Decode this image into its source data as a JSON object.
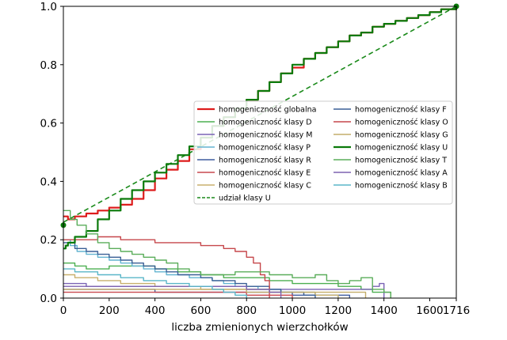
{
  "chart_data": {
    "type": "line",
    "title": "",
    "xlabel": "liczba zmienionych wierzchołków",
    "ylabel": "",
    "xlim": [
      0,
      1716
    ],
    "ylim": [
      0,
      1.0
    ],
    "xticks": [
      0,
      200,
      400,
      600,
      800,
      1000,
      1200,
      1400,
      1600,
      1716
    ],
    "yticks": [
      0.0,
      0.2,
      0.4,
      0.6,
      0.8,
      1.0
    ],
    "xtick_labels": [
      "0",
      "200",
      "400",
      "600",
      "800",
      "1000",
      "1200",
      "1400",
      "1600",
      "1716"
    ],
    "ytick_labels": [
      "0.0",
      "0.2",
      "0.4",
      "0.6",
      "0.8",
      "1.0"
    ],
    "grid": false,
    "legend_position": "center-right",
    "series": [
      {
        "name": "homogeniczność globalna",
        "color": "#dd1c1c",
        "width": 2.2,
        "dash": "",
        "x": [
          0,
          20,
          50,
          100,
          150,
          200,
          250,
          300,
          350,
          400,
          450,
          500,
          550,
          600,
          650,
          700,
          750,
          800,
          850,
          900,
          950,
          1000,
          1050,
          1100,
          1150,
          1200,
          1250,
          1300,
          1350,
          1400,
          1450,
          1500,
          1550,
          1600,
          1650,
          1716
        ],
        "y": [
          0.28,
          0.27,
          0.28,
          0.29,
          0.3,
          0.31,
          0.32,
          0.34,
          0.37,
          0.41,
          0.44,
          0.47,
          0.51,
          0.55,
          0.59,
          0.62,
          0.65,
          0.68,
          0.71,
          0.74,
          0.77,
          0.79,
          0.82,
          0.84,
          0.86,
          0.88,
          0.9,
          0.91,
          0.93,
          0.94,
          0.95,
          0.96,
          0.97,
          0.98,
          0.99,
          1.0
        ]
      },
      {
        "name": "homogeniczność klasy D",
        "color": "#4caf50",
        "width": 1.4,
        "dash": "",
        "x": [
          0,
          50,
          100,
          150,
          200,
          300,
          400,
          500,
          600,
          700,
          800,
          900,
          1000,
          1100,
          1200,
          1300,
          1350,
          1400,
          1430
        ],
        "y": [
          0.12,
          0.11,
          0.1,
          0.1,
          0.11,
          0.11,
          0.1,
          0.09,
          0.08,
          0.07,
          0.07,
          0.06,
          0.05,
          0.05,
          0.04,
          0.03,
          0.02,
          0.02,
          0.0
        ]
      },
      {
        "name": "homogeniczność klasy M",
        "color": "#7a63b5",
        "width": 1.4,
        "dash": "",
        "x": [
          0,
          100,
          200,
          300,
          400,
          500,
          600,
          700,
          800,
          900,
          1000,
          1100,
          1200,
          1300,
          1350,
          1380,
          1400
        ],
        "y": [
          0.05,
          0.04,
          0.04,
          0.04,
          0.04,
          0.04,
          0.04,
          0.04,
          0.03,
          0.03,
          0.03,
          0.03,
          0.03,
          0.03,
          0.04,
          0.05,
          0.0
        ]
      },
      {
        "name": "homogeniczność klasy P",
        "color": "#63b4d1",
        "width": 1.4,
        "dash": "",
        "x": [
          0,
          30,
          60,
          100,
          150,
          200,
          250,
          300,
          350,
          400,
          450,
          500,
          550,
          600,
          650,
          700,
          750,
          800,
          850,
          900,
          950,
          1000,
          1050,
          1100,
          1200
        ],
        "y": [
          0.2,
          0.18,
          0.16,
          0.15,
          0.14,
          0.13,
          0.12,
          0.11,
          0.1,
          0.09,
          0.08,
          0.08,
          0.07,
          0.07,
          0.06,
          0.05,
          0.04,
          0.04,
          0.03,
          0.03,
          0.02,
          0.02,
          0.02,
          0.01,
          0.0
        ]
      },
      {
        "name": "homogeniczność klasy R",
        "color": "#3f5c9e",
        "width": 1.4,
        "dash": "",
        "x": [
          0,
          100,
          200,
          300,
          400,
          500,
          600,
          700,
          800,
          900,
          1000,
          1100,
          1200,
          1250
        ],
        "y": [
          0.03,
          0.03,
          0.03,
          0.03,
          0.02,
          0.02,
          0.02,
          0.02,
          0.02,
          0.02,
          0.01,
          0.01,
          0.01,
          0.0
        ]
      },
      {
        "name": "homogeniczność klasy E",
        "color": "#c9484f",
        "width": 1.4,
        "dash": "",
        "x": [
          0,
          100,
          200,
          300,
          400,
          500,
          600,
          700,
          750,
          800,
          850,
          900,
          950,
          1000
        ],
        "y": [
          0.02,
          0.02,
          0.02,
          0.02,
          0.02,
          0.02,
          0.02,
          0.02,
          0.02,
          0.01,
          0.01,
          0.01,
          0.01,
          0.0
        ]
      },
      {
        "name": "homogeniczność klasy C",
        "color": "#c8b06e",
        "width": 1.4,
        "dash": "",
        "x": [
          0,
          50,
          100,
          150,
          200,
          250,
          300,
          400,
          500,
          600,
          700,
          800,
          900,
          1000,
          1100,
          1200
        ],
        "y": [
          0.08,
          0.07,
          0.07,
          0.06,
          0.06,
          0.05,
          0.05,
          0.04,
          0.04,
          0.03,
          0.03,
          0.03,
          0.02,
          0.02,
          0.01,
          0.0
        ]
      },
      {
        "name": "udział klasy U",
        "color": "#1a8a1a",
        "width": 1.6,
        "dash": "6,4",
        "x": [
          0,
          1716
        ],
        "y": [
          0.26,
          1.0
        ]
      },
      {
        "name": "homogeniczność klasy F",
        "color": "#3a5f95",
        "width": 1.4,
        "dash": "",
        "x": [
          0,
          50,
          100,
          150,
          200,
          250,
          300,
          350,
          400,
          450,
          500,
          550,
          600,
          650,
          700,
          750,
          800,
          850,
          900,
          950,
          1000,
          1050,
          1100
        ],
        "y": [
          0.19,
          0.17,
          0.16,
          0.15,
          0.14,
          0.13,
          0.12,
          0.11,
          0.1,
          0.09,
          0.08,
          0.08,
          0.07,
          0.06,
          0.06,
          0.05,
          0.04,
          0.04,
          0.03,
          0.02,
          0.02,
          0.01,
          0.0
        ]
      },
      {
        "name": "homogeniczność klasy O",
        "color": "#c6474b",
        "width": 1.4,
        "dash": "",
        "x": [
          0,
          100,
          150,
          200,
          250,
          300,
          350,
          400,
          450,
          500,
          550,
          600,
          650,
          700,
          720,
          750,
          780,
          800,
          830,
          860,
          880,
          900
        ],
        "y": [
          0.2,
          0.2,
          0.21,
          0.21,
          0.2,
          0.2,
          0.2,
          0.19,
          0.19,
          0.19,
          0.19,
          0.18,
          0.18,
          0.17,
          0.17,
          0.16,
          0.16,
          0.14,
          0.12,
          0.08,
          0.06,
          0.0
        ]
      },
      {
        "name": "homogeniczność klasy G",
        "color": "#c4ad6a",
        "width": 1.4,
        "dash": "",
        "x": [
          0,
          100,
          200,
          300,
          400,
          500,
          600,
          700,
          800,
          900,
          1000,
          1100,
          1200,
          1300,
          1320
        ],
        "y": [
          0.03,
          0.03,
          0.03,
          0.03,
          0.03,
          0.03,
          0.03,
          0.03,
          0.02,
          0.02,
          0.02,
          0.02,
          0.02,
          0.02,
          0.0
        ]
      },
      {
        "name": "homogeniczność klasy U",
        "color": "#0a7a0a",
        "width": 2.2,
        "dash": "",
        "x": [
          0,
          10,
          20,
          50,
          100,
          150,
          200,
          250,
          300,
          350,
          400,
          450,
          500,
          550,
          600,
          650,
          700,
          750,
          800,
          850,
          900,
          950,
          1000,
          1050,
          1100,
          1150,
          1200,
          1250,
          1300,
          1350,
          1400,
          1450,
          1500,
          1550,
          1600,
          1650,
          1716
        ],
        "y": [
          0.17,
          0.18,
          0.19,
          0.21,
          0.23,
          0.27,
          0.3,
          0.34,
          0.37,
          0.4,
          0.43,
          0.46,
          0.49,
          0.52,
          0.55,
          0.59,
          0.62,
          0.65,
          0.68,
          0.71,
          0.74,
          0.77,
          0.8,
          0.82,
          0.84,
          0.86,
          0.88,
          0.9,
          0.91,
          0.93,
          0.94,
          0.95,
          0.96,
          0.97,
          0.98,
          0.99,
          1.0
        ]
      },
      {
        "name": "homogeniczność klasy T",
        "color": "#5aad5a",
        "width": 1.4,
        "dash": "",
        "x": [
          0,
          30,
          60,
          100,
          150,
          200,
          250,
          300,
          350,
          400,
          450,
          500,
          550,
          600,
          650,
          700,
          750,
          800,
          850,
          900,
          950,
          1000,
          1050,
          1100,
          1150,
          1200,
          1250,
          1300,
          1350,
          1400,
          1430
        ],
        "y": [
          0.3,
          0.27,
          0.25,
          0.22,
          0.19,
          0.17,
          0.16,
          0.15,
          0.14,
          0.13,
          0.12,
          0.1,
          0.09,
          0.08,
          0.08,
          0.08,
          0.09,
          0.09,
          0.09,
          0.08,
          0.08,
          0.07,
          0.07,
          0.08,
          0.06,
          0.05,
          0.06,
          0.07,
          0.03,
          0.02,
          0.0
        ]
      },
      {
        "name": "homogeniczność klasy A",
        "color": "#7d62b0",
        "width": 1.4,
        "dash": "",
        "x": [
          0,
          100,
          200,
          300,
          400,
          500,
          600,
          700,
          800,
          900,
          950
        ],
        "y": [
          0.04,
          0.04,
          0.04,
          0.04,
          0.04,
          0.04,
          0.04,
          0.04,
          0.03,
          0.02,
          0.0
        ]
      },
      {
        "name": "homogeniczność klasy B",
        "color": "#5ab6c8",
        "width": 1.4,
        "dash": "",
        "x": [
          0,
          50,
          100,
          150,
          200,
          250,
          300,
          350,
          400,
          450,
          500,
          550,
          600,
          650,
          700,
          750,
          800
        ],
        "y": [
          0.1,
          0.09,
          0.09,
          0.08,
          0.08,
          0.07,
          0.07,
          0.06,
          0.06,
          0.05,
          0.05,
          0.04,
          0.04,
          0.03,
          0.02,
          0.01,
          0.0
        ]
      }
    ]
  }
}
